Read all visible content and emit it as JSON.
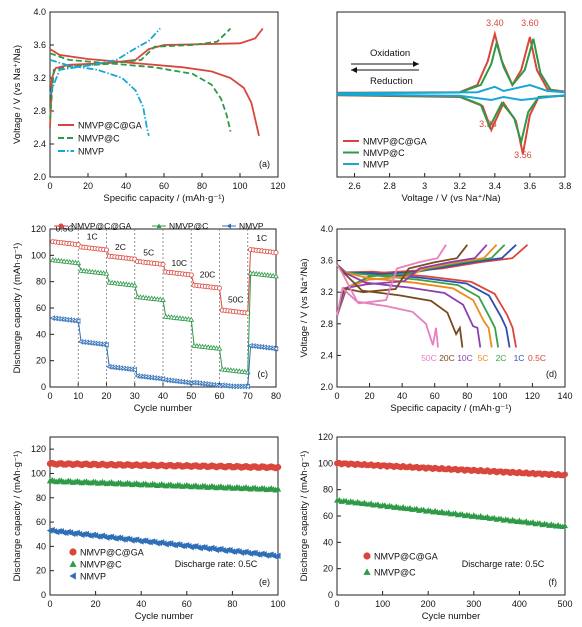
{
  "colors": {
    "red": "#d9463c",
    "green": "#2e9a47",
    "blue": "#2f6fb7",
    "cyan": "#19a6d6",
    "grid": "#888888"
  },
  "chart_data": [
    {
      "id": "a",
      "type": "line",
      "panel_label": "(a)",
      "xlabel": "Specific capacity / (mAh·g⁻¹)",
      "ylabel": "Voltage / V (vs Na⁺/Na)",
      "xlim": [
        0,
        120
      ],
      "ylim": [
        2.0,
        4.0
      ],
      "xticks": [
        0,
        20,
        40,
        60,
        80,
        100,
        120
      ],
      "yticks": [
        2.0,
        2.4,
        2.8,
        3.2,
        3.6,
        4.0
      ],
      "legend": "bottom-left",
      "series": [
        {
          "name": "NMVP@C@GA",
          "color": "red",
          "style": "solid",
          "charge": [
            [
              0,
              2.6
            ],
            [
              1,
              3.2
            ],
            [
              3,
              3.32
            ],
            [
              10,
              3.36
            ],
            [
              30,
              3.38
            ],
            [
              45,
              3.42
            ],
            [
              52,
              3.55
            ],
            [
              60,
              3.6
            ],
            [
              80,
              3.61
            ],
            [
              100,
              3.62
            ],
            [
              108,
              3.68
            ],
            [
              112,
              3.8
            ]
          ],
          "discharge": [
            [
              0,
              3.55
            ],
            [
              5,
              3.48
            ],
            [
              20,
              3.43
            ],
            [
              50,
              3.37
            ],
            [
              70,
              3.33
            ],
            [
              85,
              3.28
            ],
            [
              95,
              3.2
            ],
            [
              102,
              3.08
            ],
            [
              106,
              2.9
            ],
            [
              108,
              2.7
            ],
            [
              110,
              2.5
            ]
          ]
        },
        {
          "name": "NMVP@C",
          "color": "green",
          "style": "dashed",
          "charge": [
            [
              0,
              2.7
            ],
            [
              2,
              3.3
            ],
            [
              10,
              3.34
            ],
            [
              30,
              3.37
            ],
            [
              48,
              3.42
            ],
            [
              55,
              3.58
            ],
            [
              75,
              3.6
            ],
            [
              88,
              3.64
            ],
            [
              95,
              3.8
            ]
          ],
          "discharge": [
            [
              0,
              3.5
            ],
            [
              10,
              3.42
            ],
            [
              30,
              3.38
            ],
            [
              55,
              3.33
            ],
            [
              75,
              3.25
            ],
            [
              85,
              3.12
            ],
            [
              90,
              2.95
            ],
            [
              93,
              2.75
            ],
            [
              95,
              2.55
            ]
          ]
        },
        {
          "name": "NMVP",
          "color": "cyan",
          "style": "dashdot",
          "charge": [
            [
              0,
              3.0
            ],
            [
              5,
              3.3
            ],
            [
              20,
              3.35
            ],
            [
              35,
              3.42
            ],
            [
              45,
              3.56
            ],
            [
              52,
              3.65
            ],
            [
              58,
              3.8
            ]
          ],
          "discharge": [
            [
              0,
              3.42
            ],
            [
              10,
              3.35
            ],
            [
              25,
              3.3
            ],
            [
              38,
              3.2
            ],
            [
              45,
              3.05
            ],
            [
              49,
              2.85
            ],
            [
              51,
              2.6
            ],
            [
              52,
              2.5
            ]
          ]
        }
      ]
    },
    {
      "id": "b",
      "type": "line",
      "panel_label": "(b)",
      "xlabel": "Voltage / V (vs Na⁺/Na)",
      "xlim": [
        2.5,
        3.8
      ],
      "xticks": [
        2.6,
        2.8,
        3.0,
        3.2,
        3.4,
        3.6,
        3.8
      ],
      "legend": "bottom-left",
      "annotations": {
        "oxidation": "Oxidation",
        "reduction": "Reduction",
        "peaks_upper": [
          "3.40",
          "3.60"
        ],
        "peaks_lower": [
          "3.38",
          "3.56"
        ]
      },
      "series": [
        {
          "name": "NMVP@C@GA",
          "color": "red",
          "oxidation": [
            [
              2.5,
              0.02
            ],
            [
              3.2,
              0.03
            ],
            [
              3.3,
              0.15
            ],
            [
              3.36,
              0.55
            ],
            [
              3.4,
              1.0
            ],
            [
              3.44,
              0.55
            ],
            [
              3.5,
              0.15
            ],
            [
              3.55,
              0.4
            ],
            [
              3.6,
              0.95
            ],
            [
              3.64,
              0.4
            ],
            [
              3.7,
              0.08
            ],
            [
              3.8,
              0.04
            ]
          ],
          "reduction": [
            [
              3.8,
              -0.03
            ],
            [
              3.65,
              -0.05
            ],
            [
              3.6,
              -0.35
            ],
            [
              3.56,
              -1.0
            ],
            [
              3.52,
              -0.45
            ],
            [
              3.45,
              -0.15
            ],
            [
              3.38,
              -0.6
            ],
            [
              3.33,
              -0.2
            ],
            [
              3.2,
              -0.05
            ],
            [
              2.5,
              -0.02
            ]
          ]
        },
        {
          "name": "NMVP@C",
          "color": "green",
          "oxidation": [
            [
              2.5,
              0.015
            ],
            [
              3.2,
              0.025
            ],
            [
              3.32,
              0.15
            ],
            [
              3.38,
              0.5
            ],
            [
              3.41,
              0.85
            ],
            [
              3.45,
              0.45
            ],
            [
              3.5,
              0.15
            ],
            [
              3.57,
              0.4
            ],
            [
              3.62,
              0.92
            ],
            [
              3.66,
              0.35
            ],
            [
              3.72,
              0.06
            ],
            [
              3.8,
              0.03
            ]
          ],
          "reduction": [
            [
              3.8,
              -0.03
            ],
            [
              3.65,
              -0.05
            ],
            [
              3.59,
              -0.3
            ],
            [
              3.55,
              -0.8
            ],
            [
              3.51,
              -0.4
            ],
            [
              3.44,
              -0.15
            ],
            [
              3.37,
              -0.55
            ],
            [
              3.32,
              -0.18
            ],
            [
              3.2,
              -0.04
            ],
            [
              2.5,
              -0.015
            ]
          ]
        },
        {
          "name": "NMVP",
          "color": "cyan",
          "oxidation": [
            [
              2.5,
              0.01
            ],
            [
              3.3,
              0.03
            ],
            [
              3.4,
              0.12
            ],
            [
              3.45,
              0.05
            ],
            [
              3.6,
              0.15
            ],
            [
              3.7,
              0.05
            ],
            [
              3.8,
              0.03
            ]
          ],
          "reduction": [
            [
              3.8,
              -0.02
            ],
            [
              3.55,
              -0.1
            ],
            [
              3.45,
              -0.05
            ],
            [
              3.38,
              -0.1
            ],
            [
              3.2,
              -0.03
            ],
            [
              2.5,
              -0.01
            ]
          ]
        }
      ]
    },
    {
      "id": "c",
      "type": "line",
      "panel_label": "(c)",
      "xlabel": "Cycle number",
      "ylabel": "Discharge capacity / (mAh·g⁻¹)",
      "xlim": [
        0,
        80
      ],
      "ylim": [
        0,
        120
      ],
      "xticks": [
        0,
        10,
        20,
        30,
        40,
        50,
        60,
        70,
        80
      ],
      "yticks": [
        0,
        20,
        40,
        60,
        80,
        100,
        120
      ],
      "legend": "top",
      "rate_labels": [
        "0.5C",
        "1C",
        "2C",
        "5C",
        "10C",
        "20C",
        "50C",
        "1C"
      ],
      "segments": [
        0,
        10,
        20,
        30,
        40,
        50,
        60,
        70,
        80
      ],
      "series": [
        {
          "name": "NMVP@C@GA",
          "color": "red",
          "marker": "circle",
          "levels": [
            110,
            106,
            99,
            95,
            87,
            77,
            58,
            104
          ]
        },
        {
          "name": "NMVP@C",
          "color": "green",
          "marker": "triangle",
          "levels": [
            96,
            88,
            79,
            68,
            53,
            31,
            13,
            86
          ]
        },
        {
          "name": "NMVP",
          "color": "blue",
          "marker": "triangle-left",
          "levels": [
            52,
            34,
            15,
            8,
            5,
            3,
            1,
            31
          ]
        }
      ]
    },
    {
      "id": "d",
      "type": "line",
      "panel_label": "(d)",
      "xlabel": "Specific capacity / (mAh·g⁻¹)",
      "ylabel": "Voltage / V (vs Na⁺/Na)",
      "xlim": [
        0,
        140
      ],
      "ylim": [
        2.0,
        4.0
      ],
      "xticks": [
        0,
        20,
        40,
        60,
        80,
        100,
        120,
        140
      ],
      "yticks": [
        2.0,
        2.4,
        2.8,
        3.2,
        3.6,
        4.0
      ],
      "series": [
        {
          "name": "0.5C",
          "color": "#d9463c",
          "end": 110,
          "plateau": 3.36,
          "charge_end": 117
        },
        {
          "name": "1C",
          "color": "#2f4fb0",
          "end": 106,
          "plateau": 3.34,
          "charge_end": 110
        },
        {
          "name": "2C",
          "color": "#3aa14a",
          "end": 99,
          "plateau": 3.32,
          "charge_end": 103
        },
        {
          "name": "5C",
          "color": "#f08a1c",
          "end": 95,
          "plateau": 3.28,
          "charge_end": 98
        },
        {
          "name": "10C",
          "color": "#8d3fb0",
          "end": 88,
          "plateau": 3.22,
          "charge_end": 92
        },
        {
          "name": "20C",
          "color": "#7a4a1f",
          "end": 77,
          "plateau": 3.12,
          "charge_end": 80
        },
        {
          "name": "50C",
          "color": "#e77fc0",
          "end": 62,
          "plateau": 2.98,
          "charge_end": 67
        }
      ]
    },
    {
      "id": "e",
      "type": "scatter",
      "panel_label": "(e)",
      "xlabel": "Cycle number",
      "ylabel": "Discharge capacity / (mAh·g⁻¹)",
      "xlim": [
        0,
        100
      ],
      "ylim": [
        0,
        130
      ],
      "xticks": [
        0,
        20,
        40,
        60,
        80,
        100
      ],
      "yticks": [
        0,
        20,
        40,
        60,
        80,
        100,
        120
      ],
      "note": "Discharge rate: 0.5C",
      "legend": "bottom-left",
      "series": [
        {
          "name": "NMVP@C@GA",
          "color": "red",
          "marker": "circle",
          "start": 108,
          "end": 105
        },
        {
          "name": "NMVP@C",
          "color": "green",
          "marker": "triangle",
          "start": 94,
          "end": 87
        },
        {
          "name": "NMVP",
          "color": "blue",
          "marker": "triangle-left",
          "start": 53,
          "end": 32
        }
      ]
    },
    {
      "id": "f",
      "type": "scatter",
      "panel_label": "(f)",
      "xlabel": "Cycle number",
      "ylabel": "Discharge capacity / (mAh·g⁻¹)",
      "xlim": [
        0,
        500
      ],
      "ylim": [
        0,
        120
      ],
      "xticks": [
        0,
        100,
        200,
        300,
        400,
        500
      ],
      "yticks": [
        0,
        20,
        40,
        60,
        80,
        100,
        120
      ],
      "note": "Discharge rate: 0.5C",
      "legend": "bottom-left",
      "series": [
        {
          "name": "NMVP@C@GA",
          "color": "red",
          "marker": "circle",
          "start": 100,
          "end": 91
        },
        {
          "name": "NMVP@C",
          "color": "green",
          "marker": "triangle",
          "start": 72,
          "end": 52
        }
      ]
    }
  ]
}
